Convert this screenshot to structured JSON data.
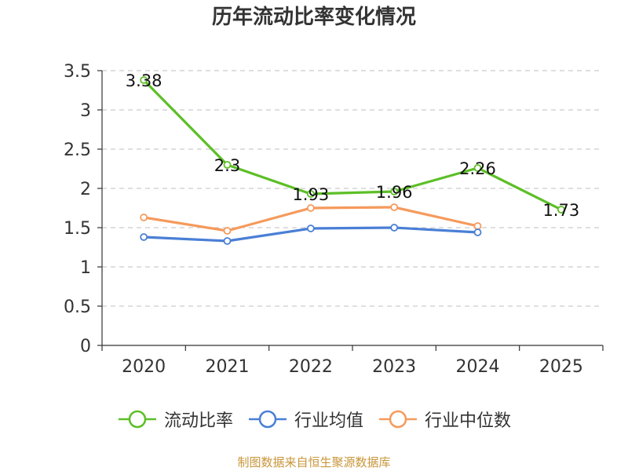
{
  "chart_data": {
    "type": "line",
    "title": "历年流动比率变化情况",
    "categories": [
      "2020",
      "2021",
      "2022",
      "2023",
      "2024",
      "2025"
    ],
    "ylim": [
      0,
      3.5
    ],
    "yticks": [
      "0",
      "0.5",
      "1",
      "1.5",
      "2",
      "2.5",
      "3",
      "3.5"
    ],
    "ytick_values": [
      0,
      0.5,
      1,
      1.5,
      2,
      2.5,
      3,
      3.5
    ],
    "grid": "dashed horizontal",
    "legend_position": "bottom",
    "series": [
      {
        "name": "流动比率",
        "color": "#5cbf26",
        "values": [
          3.38,
          2.3,
          1.93,
          1.96,
          2.26,
          1.73
        ],
        "labels": [
          "3.38",
          "2.3",
          "1.93",
          "1.96",
          "2.26",
          "1.73"
        ]
      },
      {
        "name": "行业均值",
        "color": "#4a7fd6",
        "values": [
          1.38,
          1.33,
          1.49,
          1.5,
          1.44,
          null
        ]
      },
      {
        "name": "行业中位数",
        "color": "#f59a5c",
        "values": [
          1.63,
          1.46,
          1.75,
          1.76,
          1.52,
          null
        ]
      }
    ]
  },
  "source": "制图数据来自恒生聚源数据库"
}
